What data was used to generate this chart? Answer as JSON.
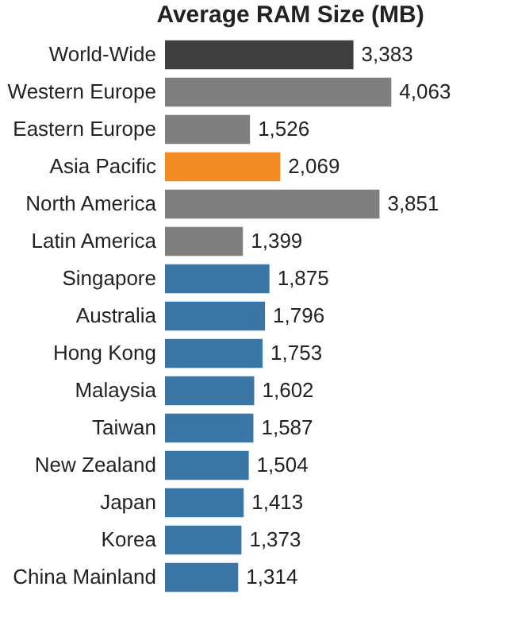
{
  "chart_data": {
    "type": "bar",
    "orientation": "horizontal",
    "title": "Average RAM Size (MB)",
    "categories": [
      "World-Wide",
      "Western Europe",
      "Eastern Europe",
      "Asia Pacific",
      "North America",
      "Latin America",
      null,
      "Singapore",
      "Australia",
      "Hong Kong",
      "Malaysia",
      "Taiwan",
      "New Zealand",
      "Japan",
      "Korea",
      "China Mainland"
    ],
    "values": [
      3383,
      4063,
      1526,
      2069,
      3851,
      1399,
      null,
      1875,
      1796,
      1753,
      1602,
      1587,
      1504,
      1413,
      1373,
      1314
    ],
    "colors": [
      "#3f3f3f",
      "#7f7f7f",
      "#7f7f7f",
      "#f28b24",
      "#7f7f7f",
      "#7f7f7f",
      null,
      "#3a77a6",
      "#3a77a6",
      "#3a77a6",
      "#3a77a6",
      "#3a77a6",
      "#3a77a6",
      "#3a77a6",
      "#3a77a6",
      "#3a77a6"
    ],
    "value_labels": [
      "3,383",
      "4,063",
      "1,526",
      "2,069",
      "3,851",
      "1,399",
      null,
      "1,875",
      "1,796",
      "1,753",
      "1,602",
      "1,587",
      "1,504",
      "1,413",
      "1,373",
      "1,314"
    ]
  }
}
